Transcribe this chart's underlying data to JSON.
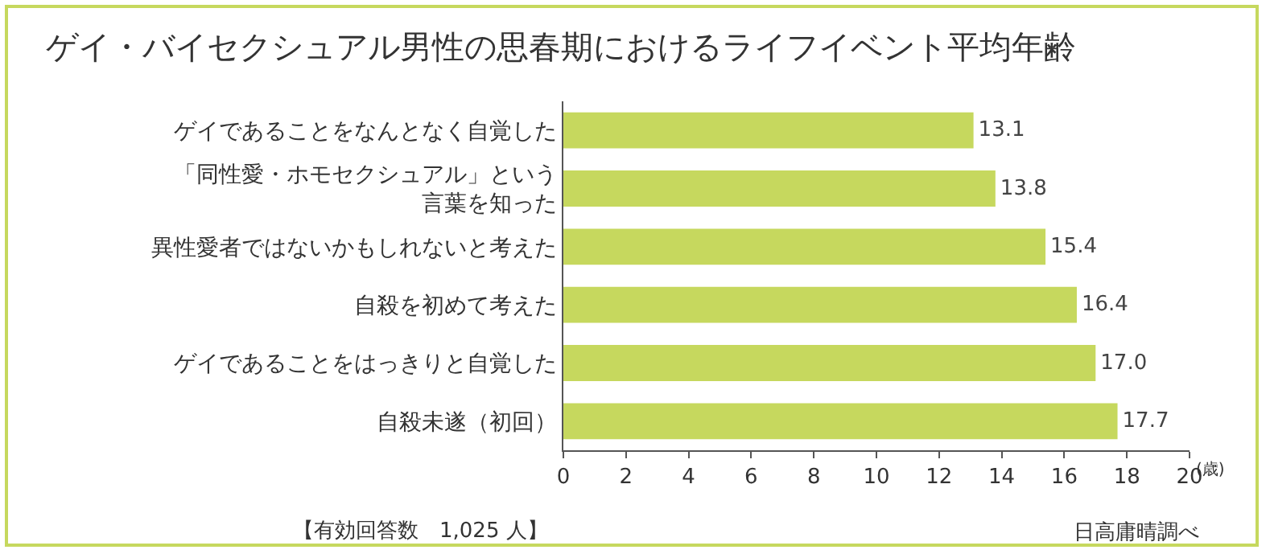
{
  "chart_data": {
    "type": "bar",
    "orientation": "horizontal",
    "title": "ゲイ・バイセクシュアル男性の思春期におけるライフイベント平均年齢",
    "categories": [
      "ゲイであることをなんとなく自覚した",
      "「同性愛・ホモセクシュアル」という言葉を知った",
      "異性愛者ではないかもしれないと考えた",
      "自殺を初めて考えた",
      "ゲイであることをはっきりと自覚した",
      "自殺未遂（初回）"
    ],
    "values": [
      13.1,
      13.8,
      15.4,
      16.4,
      17.0,
      17.7
    ],
    "value_labels": [
      "13.1",
      "13.8",
      "15.4",
      "16.4",
      "17.0",
      "17.7"
    ],
    "color": "#c6d85e",
    "xlim": [
      0,
      20
    ],
    "xticks": [
      0,
      2,
      4,
      6,
      8,
      10,
      12,
      14,
      16,
      18,
      20
    ],
    "xlabel": "(歳)",
    "grid": false,
    "legend": false,
    "annotations": [
      "【有効回答数　1,025 人】",
      "日高庸晴調べ"
    ]
  }
}
